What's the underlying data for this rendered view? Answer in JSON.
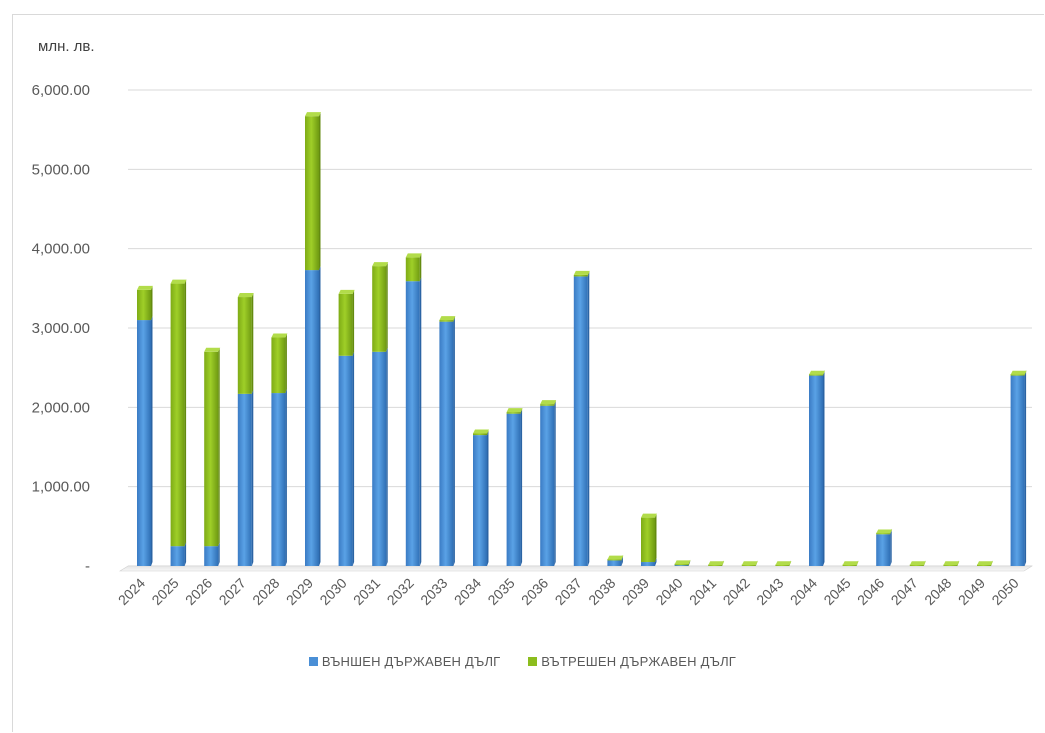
{
  "unit_label": "млн. лв.",
  "colors": {
    "external": "#4a8fd6",
    "internal": "#8cbd1e",
    "grid": "#d9d9d9"
  },
  "chart_data": {
    "type": "bar",
    "stacked": true,
    "ylabel": "млн. лв.",
    "ylim": [
      0,
      6000
    ],
    "yticks": [
      0,
      1000,
      2000,
      3000,
      4000,
      5000,
      6000
    ],
    "ytick_labels": [
      "-",
      "1,000.00",
      "2,000.00",
      "3,000.00",
      "4,000.00",
      "5,000.00",
      "6,000.00"
    ],
    "grid": true,
    "legend_position": "bottom",
    "categories": [
      "2024",
      "2025",
      "2026",
      "2027",
      "2028",
      "2029",
      "2030",
      "2031",
      "2032",
      "2033",
      "2034",
      "2035",
      "2036",
      "2037",
      "2038",
      "2039",
      "2040",
      "2041",
      "2042",
      "2043",
      "2044",
      "2045",
      "2046",
      "2047",
      "2048",
      "2049",
      "2050"
    ],
    "series": [
      {
        "name": "ВЪНШЕН ДЪРЖАВЕН ДЪЛГ",
        "color": "#4a8fd6",
        "values": [
          3100,
          250,
          250,
          2170,
          2180,
          3730,
          2650,
          2700,
          3590,
          3080,
          1650,
          1920,
          2020,
          3650,
          70,
          50,
          10,
          0,
          0,
          0,
          2400,
          0,
          400,
          0,
          0,
          0,
          2400
        ]
      },
      {
        "name": "ВЪТРЕШЕН ДЪРЖАВЕН ДЪЛГ",
        "color": "#8cbd1e",
        "values": [
          380,
          3310,
          2450,
          1220,
          700,
          1940,
          780,
          1080,
          300,
          20,
          20,
          20,
          20,
          20,
          10,
          560,
          10,
          10,
          10,
          10,
          10,
          10,
          10,
          10,
          10,
          10,
          10
        ]
      }
    ]
  }
}
